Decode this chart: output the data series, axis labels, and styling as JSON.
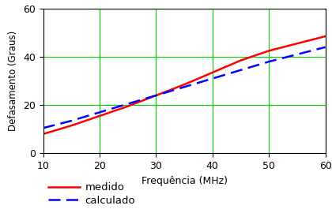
{
  "title": "",
  "xlabel": "Frequência (MHz)",
  "ylabel": "Defasamento (Graus)",
  "xlim": [
    10,
    60
  ],
  "ylim": [
    0,
    60
  ],
  "xticks": [
    10,
    20,
    30,
    40,
    50,
    60
  ],
  "yticks": [
    0,
    20,
    40,
    60
  ],
  "freq": [
    10,
    15,
    20,
    25,
    30,
    35,
    40,
    45,
    50,
    55,
    60
  ],
  "medido": [
    8.0,
    11.5,
    15.5,
    19.5,
    24.0,
    28.5,
    33.5,
    38.5,
    42.5,
    45.5,
    48.5
  ],
  "calculado": [
    10.5,
    13.5,
    17.0,
    20.5,
    24.0,
    27.5,
    31.0,
    34.5,
    38.0,
    41.0,
    44.0
  ],
  "medido_color": "#ff0000",
  "calculado_color": "#0000ff",
  "grid_color": "#00cc00",
  "background_color": "#ffffff",
  "legend_medido": "medido",
  "legend_calculado": "calculado",
  "medido_lw": 1.8,
  "calculado_lw": 1.8
}
